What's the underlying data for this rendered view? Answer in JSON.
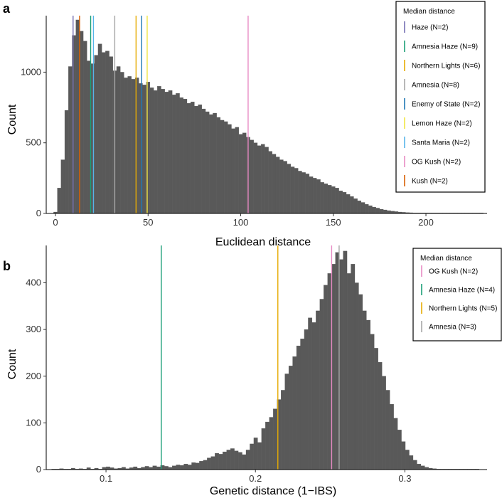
{
  "chart_data": [
    {
      "panel": "a",
      "type": "bar",
      "xlabel": "Euclidean distance",
      "ylabel": "Count",
      "xlim": [
        -5,
        233
      ],
      "ylim": [
        0,
        1400
      ],
      "xticks": [
        0,
        50,
        100,
        150,
        200
      ],
      "yticks": [
        0,
        500,
        1000
      ],
      "bin_width": 2,
      "x": [
        0,
        2,
        4,
        6,
        8,
        10,
        12,
        14,
        16,
        18,
        20,
        22,
        24,
        26,
        28,
        30,
        32,
        34,
        36,
        38,
        40,
        42,
        44,
        46,
        48,
        50,
        52,
        54,
        56,
        58,
        60,
        62,
        64,
        66,
        68,
        70,
        72,
        74,
        76,
        78,
        80,
        82,
        84,
        86,
        88,
        90,
        92,
        94,
        96,
        98,
        100,
        102,
        104,
        106,
        108,
        110,
        112,
        114,
        116,
        118,
        120,
        122,
        124,
        126,
        128,
        130,
        132,
        134,
        136,
        138,
        140,
        142,
        144,
        146,
        148,
        150,
        152,
        154,
        156,
        158,
        160,
        162,
        164,
        166,
        168,
        170,
        172,
        174,
        176,
        178,
        180,
        182,
        184,
        186,
        188,
        190,
        192,
        194,
        196,
        198,
        200,
        202,
        204,
        206,
        208,
        210,
        212,
        214,
        216,
        218,
        220,
        222,
        224,
        226,
        228,
        230
      ],
      "values": [
        10,
        180,
        380,
        730,
        1040,
        1260,
        1370,
        1290,
        1220,
        1080,
        1060,
        1120,
        1200,
        1140,
        1150,
        1110,
        1010,
        1040,
        1000,
        960,
        970,
        950,
        960,
        920,
        910,
        930,
        890,
        870,
        900,
        880,
        860,
        870,
        840,
        850,
        820,
        810,
        780,
        790,
        760,
        770,
        740,
        720,
        700,
        710,
        680,
        660,
        650,
        630,
        600,
        610,
        560,
        570,
        540,
        520,
        500,
        480,
        490,
        470,
        440,
        420,
        400,
        380,
        370,
        350,
        330,
        320,
        300,
        290,
        280,
        260,
        250,
        240,
        220,
        210,
        200,
        190,
        180,
        160,
        150,
        135,
        120,
        105,
        90,
        78,
        65,
        55,
        45,
        38,
        30,
        25,
        20,
        16,
        13,
        10,
        8,
        6,
        5,
        4,
        3,
        2,
        2,
        1,
        1,
        1,
        1,
        1,
        1,
        0,
        0,
        0,
        0,
        0,
        0,
        0,
        0,
        1
      ],
      "legend": {
        "title": "Median distance",
        "position": "top-right",
        "entries": [
          {
            "label": "Haze (N=2)",
            "value": 9.5,
            "color": "#7570B3"
          },
          {
            "label": "Amnesia Haze (N=9)",
            "value": 19,
            "color": "#1B9E77"
          },
          {
            "label": "Northern Lights (N=6)",
            "value": 43.5,
            "color": "#E6AB02"
          },
          {
            "label": "Amnesia (N=8)",
            "value": 32,
            "color": "#A6A6A6"
          },
          {
            "label": "Enemy of State (N=2)",
            "value": 46.5,
            "color": "#1F78B4"
          },
          {
            "label": "Lemon Haze (N=2)",
            "value": 49.5,
            "color": "#F0E442"
          },
          {
            "label": "Santa Maria (N=2)",
            "value": 20.5,
            "color": "#56B4E9"
          },
          {
            "label": "OG Kush (N=2)",
            "value": 104,
            "color": "#E78AC3"
          },
          {
            "label": "Kush (N=2)",
            "value": 13,
            "color": "#D95F02"
          }
        ]
      }
    },
    {
      "panel": "b",
      "type": "bar",
      "xlabel": "Genetic distance (1−IBS)",
      "ylabel": "Count",
      "xlim": [
        0.06,
        0.355
      ],
      "ylim": [
        0,
        480
      ],
      "xticks": [
        0.1,
        0.2,
        0.3
      ],
      "yticks": [
        0,
        100,
        200,
        300,
        400
      ],
      "bin_width": 0.0026,
      "x": [
        0.065,
        0.0676,
        0.0702,
        0.0728,
        0.0754,
        0.078,
        0.0806,
        0.0832,
        0.0858,
        0.0884,
        0.091,
        0.0936,
        0.0962,
        0.0988,
        0.1014,
        0.104,
        0.1066,
        0.1092,
        0.1118,
        0.1144,
        0.117,
        0.1196,
        0.1222,
        0.1248,
        0.1274,
        0.13,
        0.1326,
        0.1352,
        0.1378,
        0.1404,
        0.143,
        0.1456,
        0.1482,
        0.1508,
        0.1534,
        0.156,
        0.1586,
        0.1612,
        0.1638,
        0.1664,
        0.169,
        0.1716,
        0.1742,
        0.1768,
        0.1794,
        0.182,
        0.1846,
        0.1872,
        0.1898,
        0.1924,
        0.195,
        0.1976,
        0.2002,
        0.2028,
        0.2054,
        0.208,
        0.2106,
        0.2132,
        0.2158,
        0.2184,
        0.221,
        0.2236,
        0.2262,
        0.2288,
        0.2314,
        0.234,
        0.2366,
        0.2392,
        0.2418,
        0.2444,
        0.247,
        0.2496,
        0.2522,
        0.2548,
        0.2574,
        0.26,
        0.2626,
        0.2652,
        0.2678,
        0.2704,
        0.273,
        0.2756,
        0.2782,
        0.2808,
        0.2834,
        0.286,
        0.2886,
        0.2912,
        0.2938,
        0.2964,
        0.299,
        0.3016,
        0.3042,
        0.3068,
        0.3094,
        0.312,
        0.3146,
        0.3172,
        0.3198,
        0.3224,
        0.325,
        0.3276,
        0.3302,
        0.3328,
        0.3354,
        0.338,
        0.3406,
        0.3432,
        0.3458,
        0.3484
      ],
      "values": [
        1,
        0,
        2,
        1,
        0,
        3,
        1,
        2,
        0,
        4,
        1,
        3,
        1,
        5,
        6,
        4,
        2,
        3,
        5,
        2,
        4,
        6,
        3,
        5,
        7,
        5,
        8,
        6,
        9,
        7,
        5,
        8,
        10,
        9,
        12,
        10,
        15,
        14,
        18,
        20,
        25,
        28,
        35,
        33,
        38,
        42,
        45,
        40,
        37,
        32,
        42,
        55,
        68,
        58,
        88,
        102,
        112,
        130,
        150,
        170,
        205,
        222,
        242,
        265,
        280,
        300,
        325,
        315,
        340,
        365,
        395,
        420,
        440,
        465,
        450,
        468,
        420,
        440,
        400,
        375,
        340,
        320,
        290,
        260,
        230,
        200,
        170,
        140,
        110,
        85,
        60,
        42,
        30,
        20,
        12,
        8,
        5,
        3,
        2,
        1,
        1,
        0,
        0,
        0,
        1,
        0,
        0,
        0,
        0,
        1
      ],
      "legend": {
        "title": "Median distance",
        "position": "top-right",
        "entries": [
          {
            "label": "OG Kush (N=2)",
            "value": 0.251,
            "color": "#E78AC3"
          },
          {
            "label": "Amnesia Haze (N=4)",
            "value": 0.137,
            "color": "#1B9E77"
          },
          {
            "label": "Northern Lights (N=5)",
            "value": 0.215,
            "color": "#E6AB02"
          },
          {
            "label": "Amnesia (N=3)",
            "value": 0.256,
            "color": "#A6A6A6"
          }
        ]
      }
    }
  ]
}
